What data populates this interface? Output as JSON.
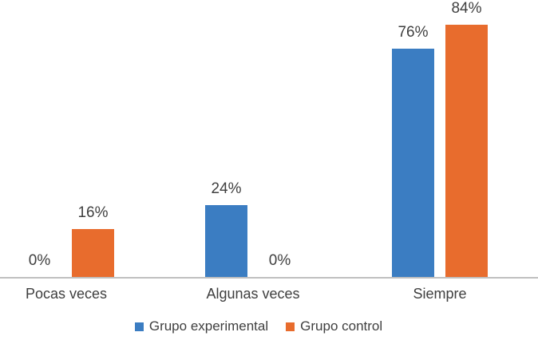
{
  "chart_data": {
    "type": "bar",
    "title": "",
    "categories": [
      "Pocas veces",
      "Algunas veces",
      "Siempre"
    ],
    "series": [
      {
        "name": "Grupo experimental",
        "color": "#3B7DC2",
        "values": [
          0,
          24,
          76
        ],
        "labels": [
          "0%",
          "24%",
          "76%"
        ]
      },
      {
        "name": "Grupo control",
        "color": "#E86C2D",
        "values": [
          16,
          0,
          84
        ],
        "labels": [
          "16%",
          "0%",
          "84%"
        ]
      }
    ],
    "value_format": "percent",
    "ylim": [
      0,
      100
    ],
    "grid": false,
    "y_axis_visible": false,
    "x_axis_line_color": "#C0C0C0",
    "text_color": "#3F3F3F",
    "background_color": "#FFFFFF",
    "legend_position": "bottom"
  }
}
